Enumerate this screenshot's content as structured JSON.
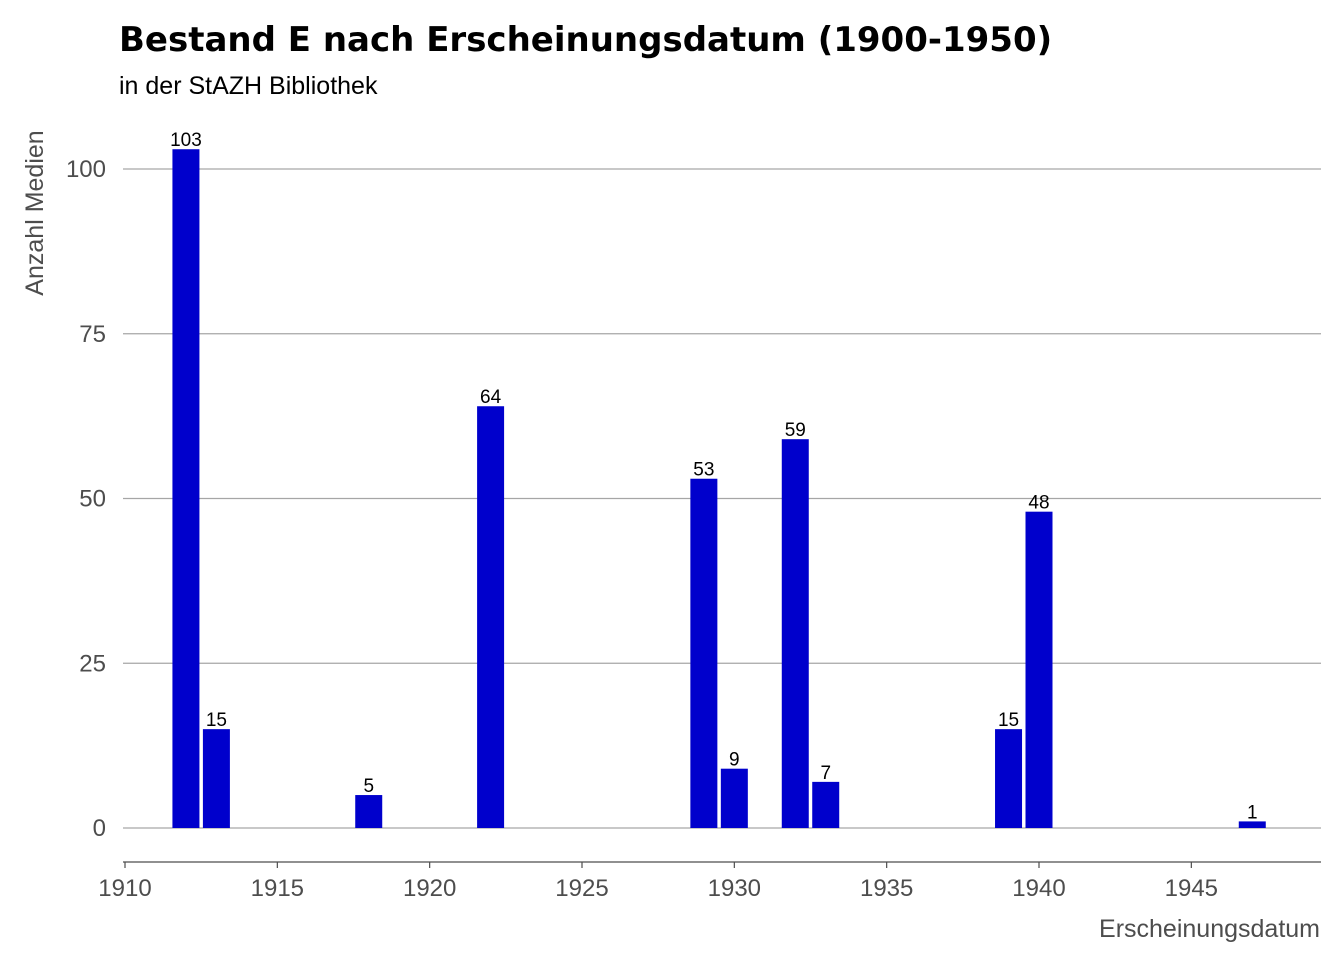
{
  "chart_data": {
    "type": "bar",
    "title": "Bestand E nach Erscheinungsdatum (1900-1950)",
    "subtitle": "in der StAZH Bibliothek",
    "xlabel": "Erscheinungsdatum",
    "ylabel": "Anzahl Medien",
    "x": [
      1912,
      1913,
      1918,
      1922,
      1929,
      1930,
      1932,
      1933,
      1939,
      1940,
      1947
    ],
    "values": [
      103,
      15,
      5,
      64,
      53,
      9,
      59,
      7,
      15,
      48,
      1
    ],
    "xlim": [
      1910,
      1949
    ],
    "ylim": [
      -5,
      108
    ],
    "xticks": [
      1910,
      1915,
      1920,
      1925,
      1930,
      1935,
      1940,
      1945
    ],
    "yticks": [
      0,
      25,
      50,
      75,
      100
    ],
    "grid": "horizontal",
    "bar_color": "#0000CC"
  }
}
